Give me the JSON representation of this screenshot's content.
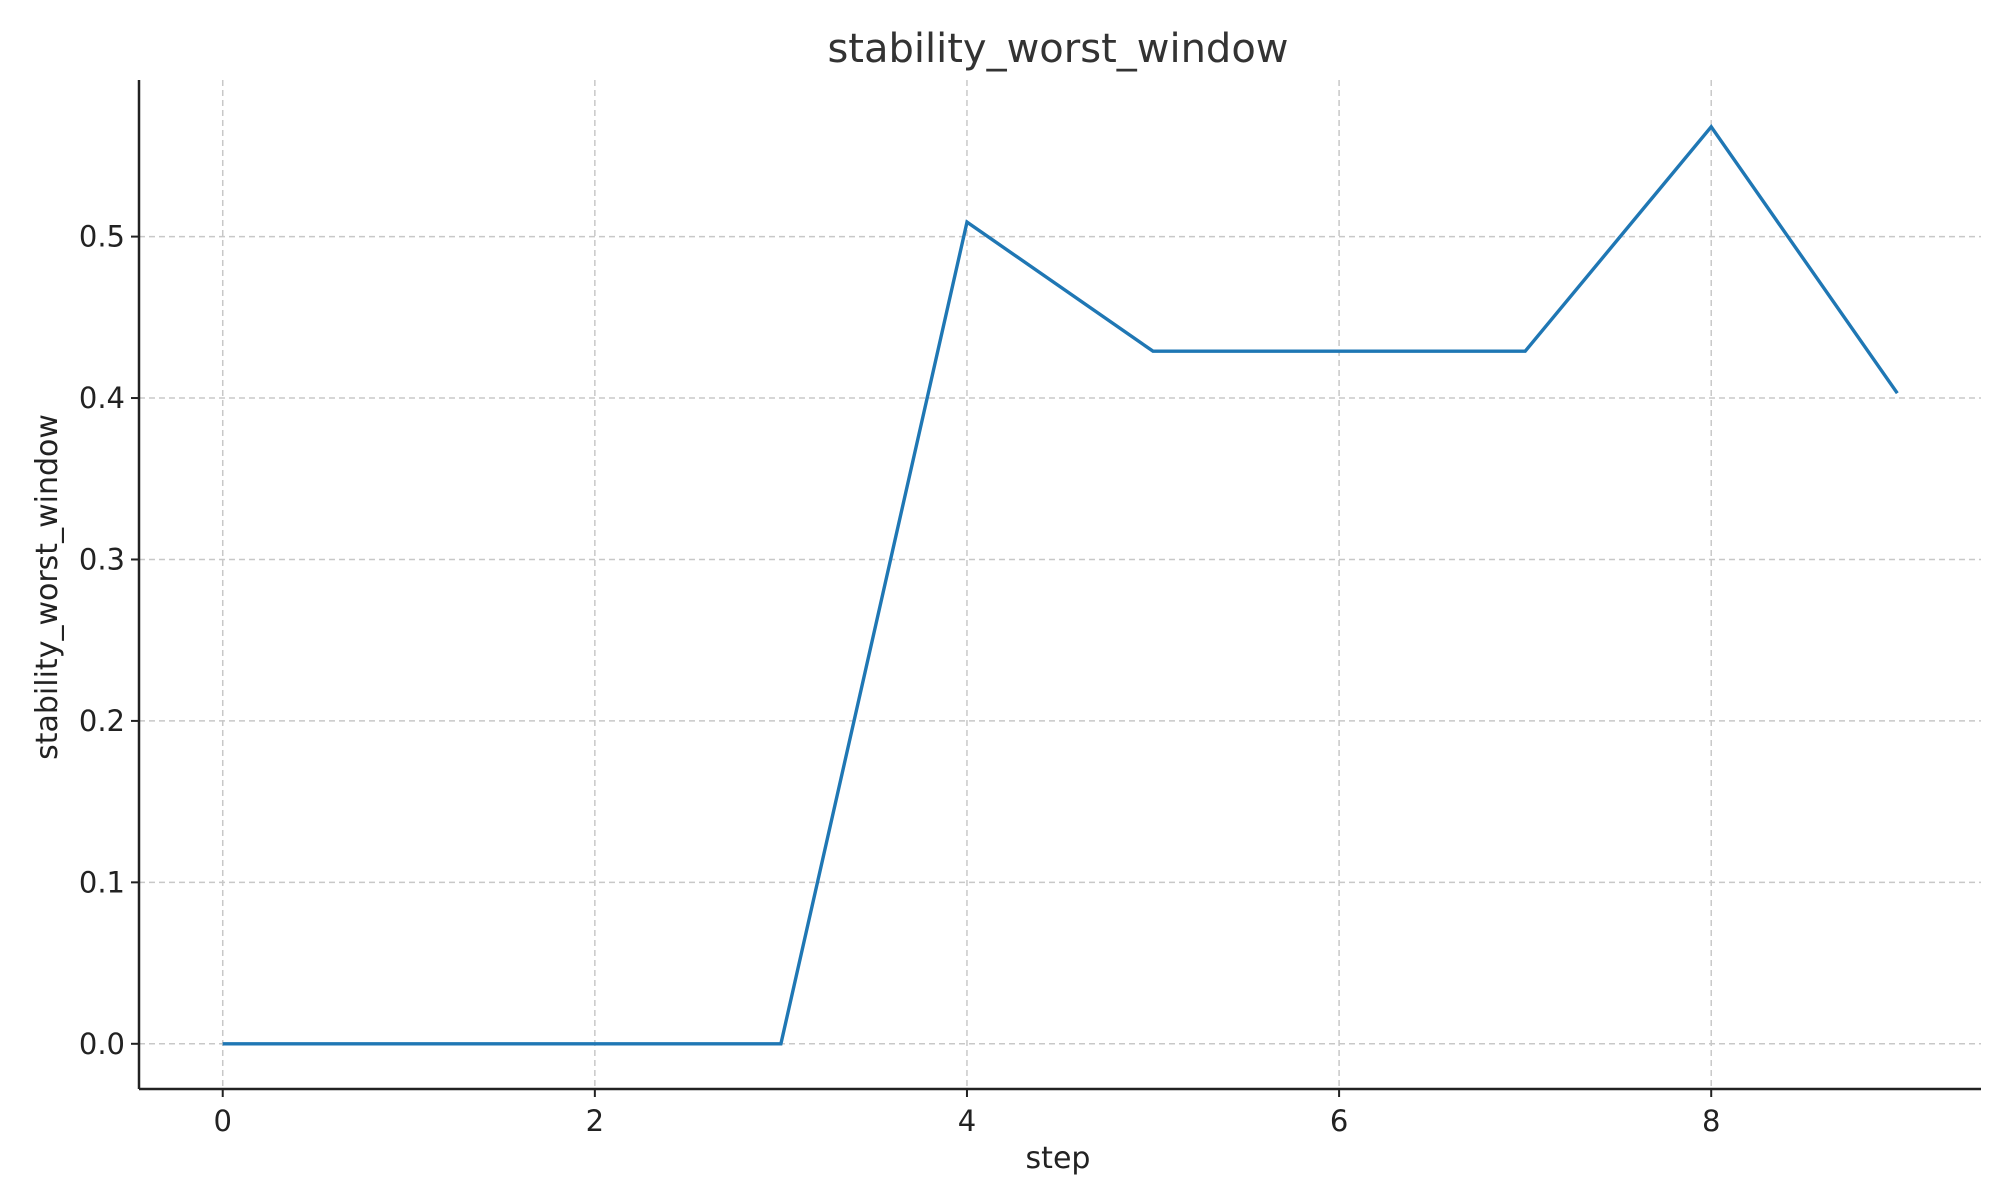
{
  "chart_data": {
    "type": "line",
    "title": "stability_worst_window",
    "xlabel": "step",
    "ylabel": "stability_worst_window",
    "x": [
      0,
      1,
      2,
      3,
      4,
      5,
      6,
      7,
      8,
      9
    ],
    "series": [
      {
        "values": [
          0.0,
          0.0,
          0.0,
          0.0,
          0.509,
          0.429,
          0.429,
          0.429,
          0.568,
          0.403
        ],
        "color": "#1f77b4"
      }
    ],
    "xlim": [
      -0.45,
      9.45
    ],
    "ylim": [
      -0.028,
      0.597
    ],
    "xticks": [
      0,
      2,
      4,
      6,
      8
    ],
    "xtick_labels": [
      "0",
      "2",
      "4",
      "6",
      "8"
    ],
    "yticks": [
      0.0,
      0.1,
      0.2,
      0.3,
      0.4,
      0.5
    ],
    "ytick_labels": [
      "0.0",
      "0.1",
      "0.2",
      "0.3",
      "0.4",
      "0.5"
    ],
    "grid": true,
    "spines": [
      "left",
      "bottom"
    ]
  }
}
